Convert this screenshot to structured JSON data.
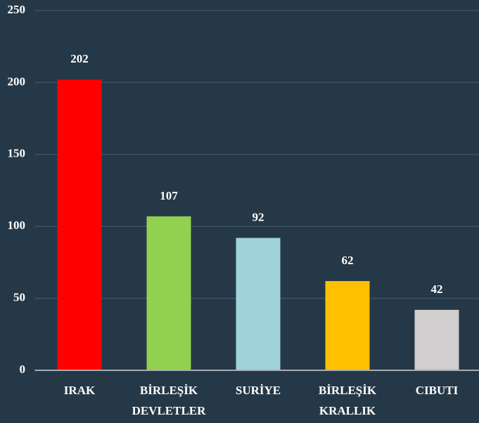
{
  "chart_data": {
    "type": "bar",
    "categories": [
      "IRAK",
      "BİRLEŞİK DEVLETLER",
      "SURİYE",
      "BİRLEŞİK KRALLIK",
      "CIBUTI"
    ],
    "values": [
      202,
      107,
      92,
      62,
      42
    ],
    "colors": [
      "#ff0000",
      "#92d050",
      "#9fd3da",
      "#ffc000",
      "#d0cece"
    ],
    "ylim": [
      0,
      250
    ],
    "yticks": [
      0,
      50,
      100,
      150,
      200,
      250
    ],
    "grid": true
  }
}
